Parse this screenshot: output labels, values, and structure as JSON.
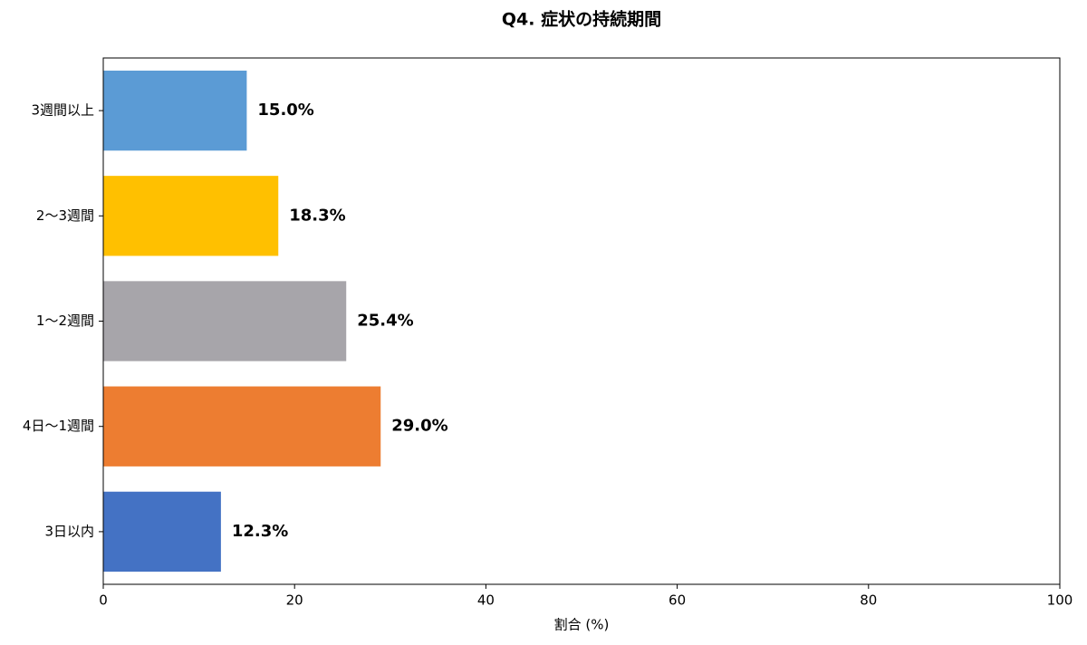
{
  "chart_data": {
    "type": "barh",
    "title": "Q4. 症状の持続期間",
    "xlabel": "割合 (%)",
    "categories": [
      "3日以内",
      "4日〜1週間",
      "1〜2週間",
      "2〜3週間",
      "3週間以上"
    ],
    "values": [
      12.3,
      29.0,
      25.4,
      18.3,
      15.0
    ],
    "value_labels": [
      "12.3%",
      "29.0%",
      "25.4%",
      "18.3%",
      "15.0%"
    ],
    "colors": [
      "#4472c4",
      "#ed7d31",
      "#a7a5aa",
      "#ffc000",
      "#5b9bd5"
    ],
    "xlim": [
      0,
      100
    ],
    "xticks": [
      0,
      20,
      40,
      60,
      80,
      100
    ]
  }
}
